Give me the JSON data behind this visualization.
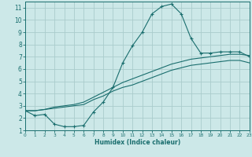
{
  "xlabel": "Humidex (Indice chaleur)",
  "bg_color": "#cce8e8",
  "grid_color": "#aacccc",
  "line_color": "#1a6e6e",
  "xlim": [
    0,
    23
  ],
  "ylim": [
    1,
    11.5
  ],
  "xticks": [
    0,
    1,
    2,
    3,
    4,
    5,
    6,
    7,
    8,
    9,
    10,
    11,
    12,
    13,
    14,
    15,
    16,
    17,
    18,
    19,
    20,
    21,
    22,
    23
  ],
  "yticks": [
    1,
    2,
    3,
    4,
    5,
    6,
    7,
    8,
    9,
    10,
    11
  ],
  "curve1_x": [
    0,
    1,
    2,
    3,
    4,
    5,
    6,
    7,
    8,
    9,
    10,
    11,
    12,
    13,
    14,
    15,
    16,
    17,
    18,
    19,
    20,
    21,
    22,
    23
  ],
  "curve1_y": [
    2.6,
    2.2,
    2.3,
    1.5,
    1.3,
    1.3,
    1.4,
    2.5,
    3.3,
    4.5,
    6.5,
    7.9,
    9.0,
    10.5,
    11.1,
    11.3,
    10.5,
    8.5,
    7.3,
    7.3,
    7.4,
    7.4,
    7.4,
    7.0
  ],
  "curve2_x": [
    0,
    1,
    2,
    3,
    4,
    5,
    6,
    7,
    8,
    9,
    10,
    11,
    12,
    13,
    14,
    15,
    16,
    17,
    18,
    19,
    20,
    21,
    22,
    23
  ],
  "curve2_y": [
    2.6,
    2.6,
    2.7,
    2.8,
    2.9,
    3.0,
    3.1,
    3.5,
    3.8,
    4.2,
    4.5,
    4.7,
    5.0,
    5.3,
    5.6,
    5.9,
    6.1,
    6.3,
    6.4,
    6.5,
    6.6,
    6.7,
    6.7,
    6.5
  ],
  "curve3_x": [
    0,
    1,
    2,
    3,
    4,
    5,
    6,
    7,
    8,
    9,
    10,
    11,
    12,
    13,
    14,
    15,
    16,
    17,
    18,
    19,
    20,
    21,
    22,
    23
  ],
  "curve3_y": [
    2.6,
    2.6,
    2.7,
    2.9,
    3.0,
    3.1,
    3.3,
    3.7,
    4.1,
    4.5,
    4.9,
    5.2,
    5.5,
    5.8,
    6.1,
    6.4,
    6.6,
    6.8,
    6.9,
    7.0,
    7.1,
    7.2,
    7.2,
    7.1
  ],
  "xlabel_fontsize": 5.5,
  "tick_fontsize_x": 4.2,
  "tick_fontsize_y": 5.5
}
